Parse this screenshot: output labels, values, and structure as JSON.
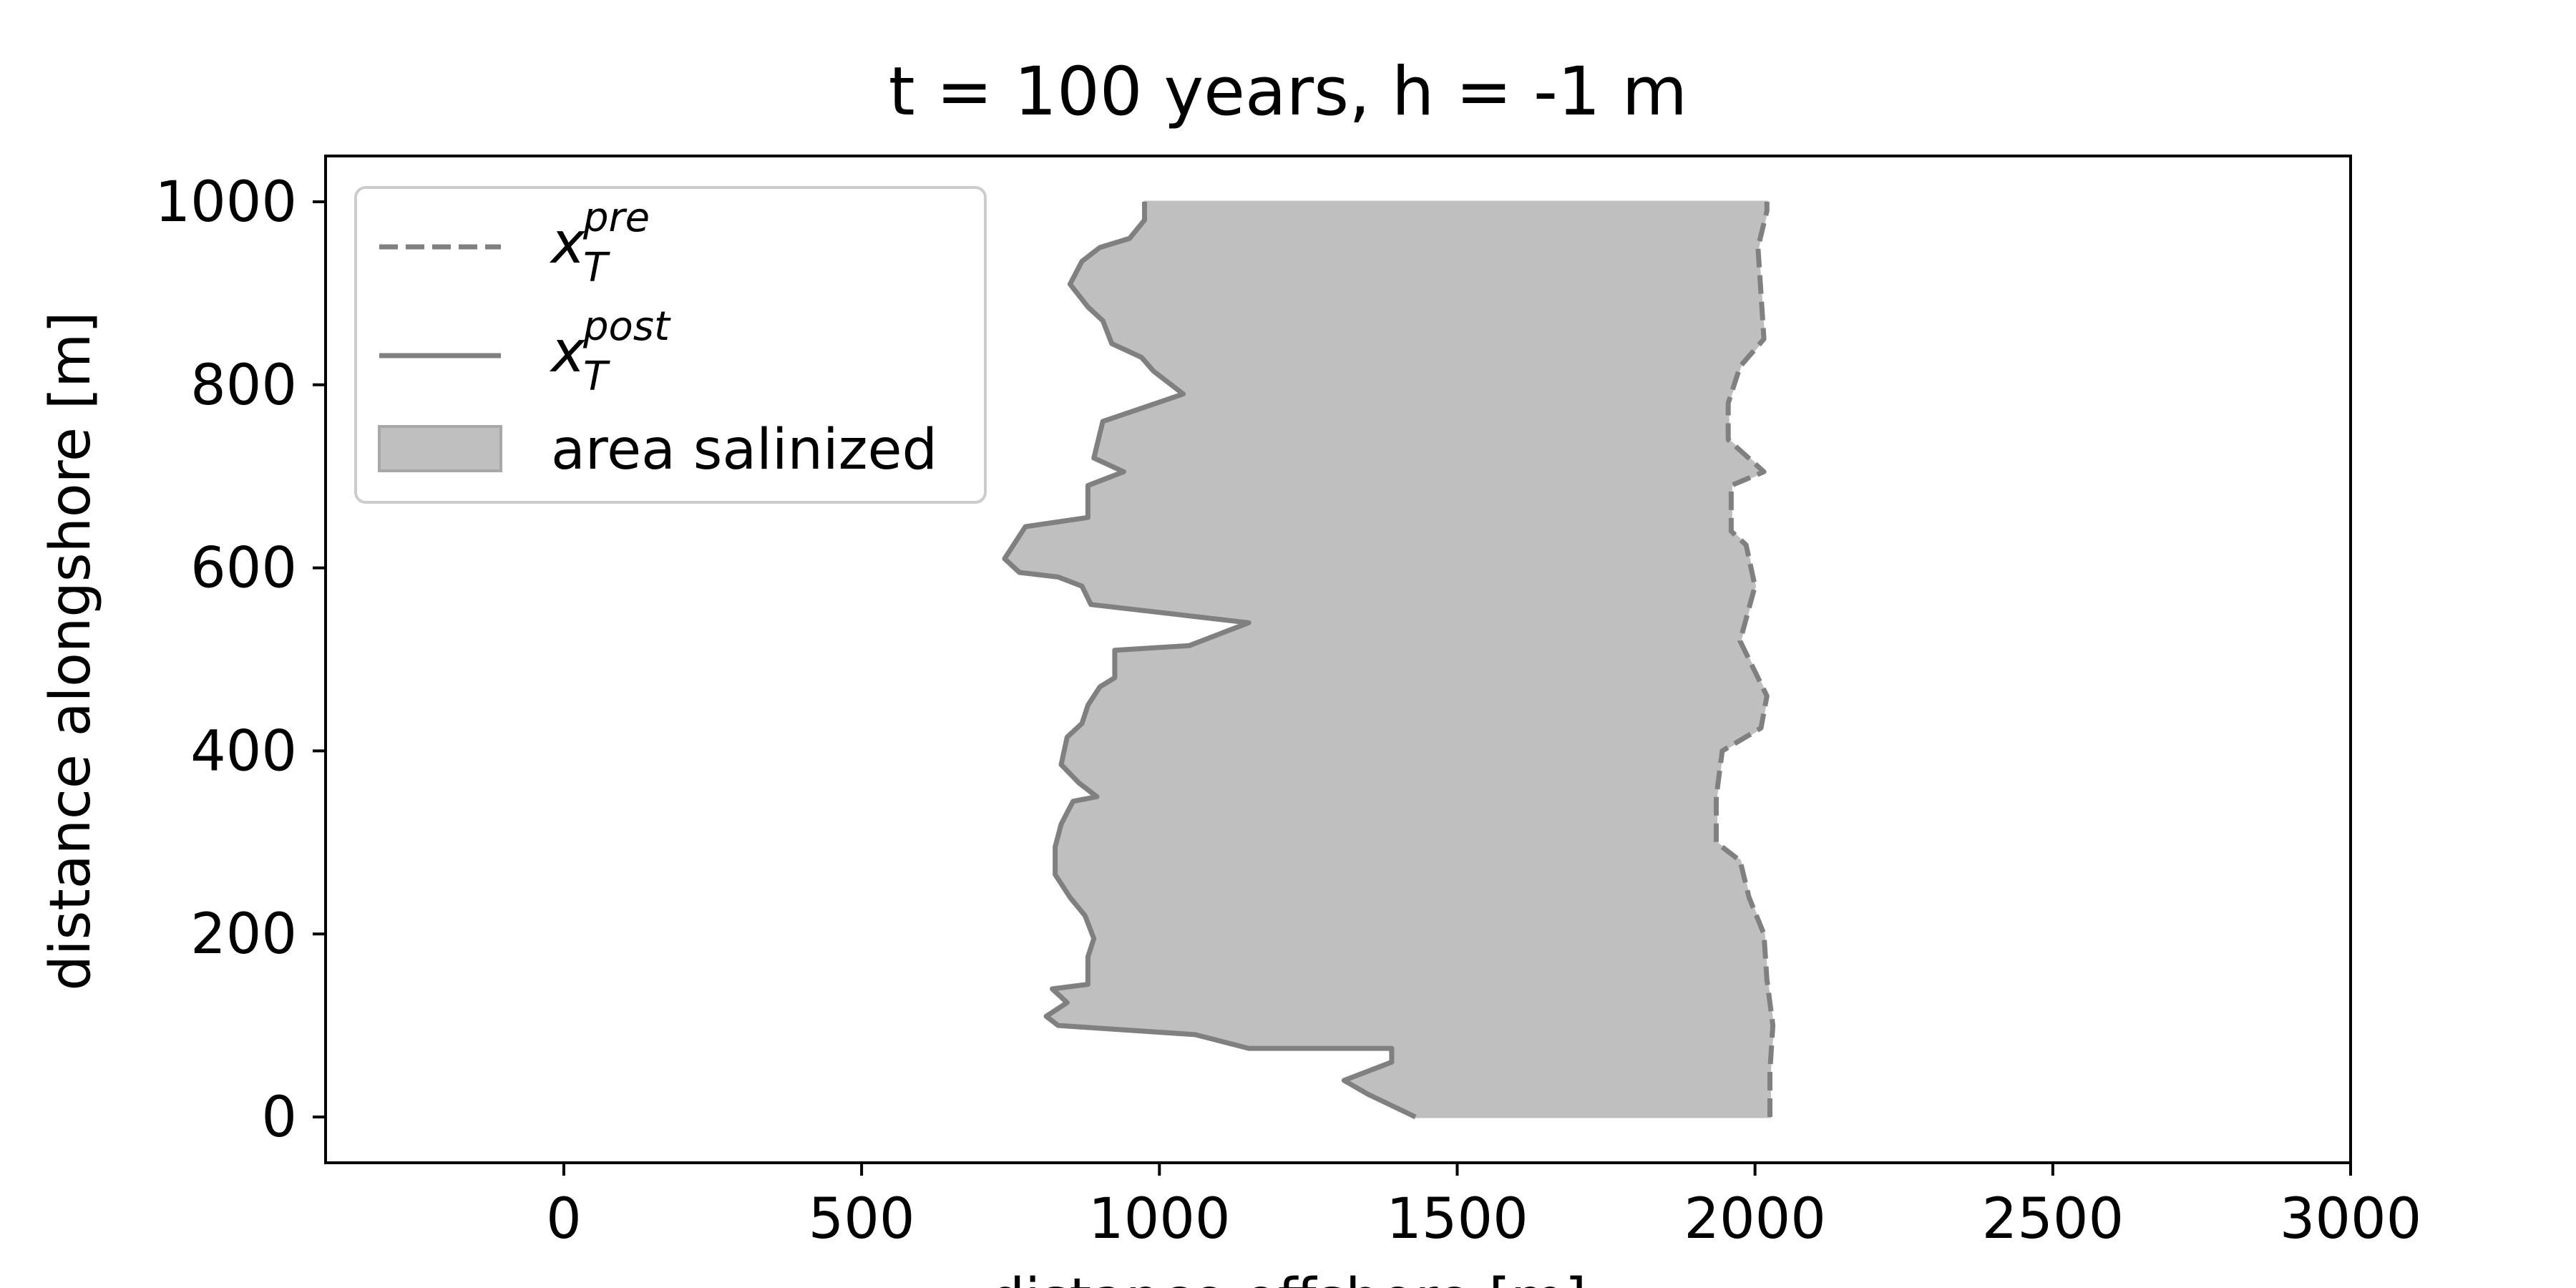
{
  "chart_data": {
    "type": "area",
    "title": "t = 100 years, h = -1 m",
    "xlabel": "distance offshore [m]",
    "ylabel": "distance alongshore [m]",
    "xlim": [
      -400,
      3000
    ],
    "ylim": [
      -50,
      1050
    ],
    "xticks": [
      0,
      500,
      1000,
      1500,
      2000,
      2500,
      3000
    ],
    "yticks": [
      0,
      200,
      400,
      600,
      800,
      1000
    ],
    "grid": false,
    "legend_placement": "upper-left",
    "legend": [
      {
        "symbol": "x",
        "subscript": "T",
        "superscript": "pre",
        "style": "dashed",
        "color": "#808080"
      },
      {
        "symbol": "x",
        "subscript": "T",
        "superscript": "post",
        "style": "solid",
        "color": "#808080"
      },
      {
        "label": "area salinized",
        "style": "fill",
        "color": "#bfbfbf"
      }
    ],
    "series": [
      {
        "key": "x_pre",
        "line_style": "dashed",
        "color": "#808080",
        "points": [
          [
            2025,
            0
          ],
          [
            2025,
            50
          ],
          [
            2030,
            100
          ],
          [
            2020,
            150
          ],
          [
            2015,
            200
          ],
          [
            1990,
            240
          ],
          [
            1975,
            280
          ],
          [
            1935,
            300
          ],
          [
            1935,
            350
          ],
          [
            1945,
            400
          ],
          [
            2010,
            425
          ],
          [
            2020,
            460
          ],
          [
            1975,
            520
          ],
          [
            2000,
            580
          ],
          [
            1985,
            625
          ],
          [
            1960,
            640
          ],
          [
            1960,
            690
          ],
          [
            2015,
            705
          ],
          [
            1955,
            740
          ],
          [
            1955,
            780
          ],
          [
            1975,
            820
          ],
          [
            2015,
            850
          ],
          [
            2010,
            900
          ],
          [
            2005,
            950
          ],
          [
            2020,
            990
          ],
          [
            2020,
            1000
          ]
        ]
      },
      {
        "key": "x_post",
        "line_style": "solid",
        "color": "#808080",
        "points": [
          [
            1430,
            0
          ],
          [
            1350,
            25
          ],
          [
            1310,
            40
          ],
          [
            1390,
            60
          ],
          [
            1390,
            75
          ],
          [
            1150,
            75
          ],
          [
            1060,
            90
          ],
          [
            830,
            100
          ],
          [
            810,
            110
          ],
          [
            845,
            125
          ],
          [
            820,
            140
          ],
          [
            880,
            145
          ],
          [
            880,
            175
          ],
          [
            890,
            195
          ],
          [
            875,
            220
          ],
          [
            850,
            240
          ],
          [
            825,
            265
          ],
          [
            825,
            295
          ],
          [
            835,
            320
          ],
          [
            855,
            345
          ],
          [
            895,
            350
          ],
          [
            865,
            365
          ],
          [
            835,
            385
          ],
          [
            845,
            415
          ],
          [
            870,
            430
          ],
          [
            880,
            450
          ],
          [
            900,
            470
          ],
          [
            925,
            480
          ],
          [
            925,
            510
          ],
          [
            1050,
            515
          ],
          [
            1150,
            540
          ],
          [
            885,
            560
          ],
          [
            870,
            580
          ],
          [
            830,
            590
          ],
          [
            765,
            595
          ],
          [
            740,
            610
          ],
          [
            775,
            645
          ],
          [
            880,
            655
          ],
          [
            880,
            690
          ],
          [
            940,
            705
          ],
          [
            890,
            720
          ],
          [
            905,
            760
          ],
          [
            1040,
            790
          ],
          [
            990,
            815
          ],
          [
            970,
            830
          ],
          [
            920,
            845
          ],
          [
            905,
            870
          ],
          [
            880,
            885
          ],
          [
            850,
            910
          ],
          [
            870,
            935
          ],
          [
            900,
            950
          ],
          [
            950,
            960
          ],
          [
            975,
            980
          ],
          [
            975,
            1000
          ]
        ]
      }
    ],
    "fill": {
      "between": [
        "x_post",
        "x_pre"
      ],
      "label": "area salinized",
      "color": "#bfbfbf"
    }
  }
}
